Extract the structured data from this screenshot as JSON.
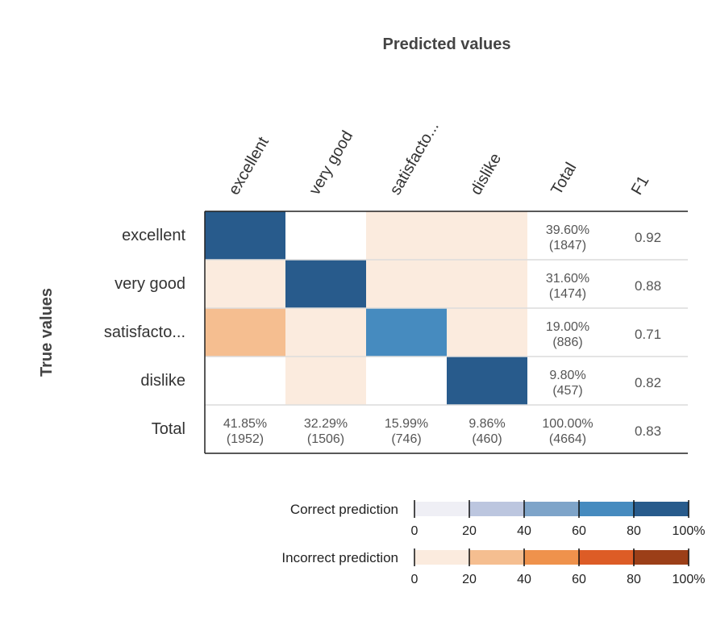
{
  "chart_data": {
    "type": "heatmap",
    "title": "Predicted values",
    "ylabel": "True values",
    "columns": [
      "excellent",
      "very good",
      "satisfacto...",
      "dislike",
      "Total",
      "F1"
    ],
    "classes": [
      "excellent",
      "very good",
      "satisfacto...",
      "dislike"
    ],
    "total_label": "Total",
    "matrix_percent": [
      [
        95,
        0,
        5,
        5
      ],
      [
        5,
        95,
        5,
        5
      ],
      [
        30,
        5,
        75,
        5
      ],
      [
        0,
        5,
        0,
        95
      ]
    ],
    "matrix_kind": [
      [
        "correct",
        "incorrect",
        "incorrect",
        "incorrect"
      ],
      [
        "incorrect",
        "correct",
        "incorrect",
        "incorrect"
      ],
      [
        "incorrect",
        "incorrect",
        "correct",
        "incorrect"
      ],
      [
        "incorrect",
        "incorrect",
        "incorrect",
        "correct"
      ]
    ],
    "row_totals": [
      {
        "percent": "39.60%",
        "count": "(1847)"
      },
      {
        "percent": "31.60%",
        "count": "(1474)"
      },
      {
        "percent": "19.00%",
        "count": "(886)"
      },
      {
        "percent": "9.80%",
        "count": "(457)"
      }
    ],
    "f1": [
      "0.92",
      "0.88",
      "0.71",
      "0.82"
    ],
    "col_totals": [
      {
        "percent": "41.85%",
        "count": "(1952)"
      },
      {
        "percent": "32.29%",
        "count": "(1506)"
      },
      {
        "percent": "15.99%",
        "count": "(746)"
      },
      {
        "percent": "9.86%",
        "count": "(460)"
      }
    ],
    "grand_total": {
      "percent": "100.00%",
      "count": "(4664)"
    },
    "f1_total": "0.83",
    "legend": [
      {
        "label": "Correct prediction",
        "colors": [
          "#efeff5",
          "#bcc6df",
          "#7ea4c9",
          "#468bbf",
          "#285b8c"
        ]
      },
      {
        "label": "Incorrect prediction",
        "colors": [
          "#fbebde",
          "#f5be90",
          "#ef924c",
          "#dd5c26",
          "#9c3f18"
        ]
      }
    ],
    "legend_ticks": [
      "0",
      "20",
      "40",
      "60",
      "80",
      "100%"
    ]
  }
}
